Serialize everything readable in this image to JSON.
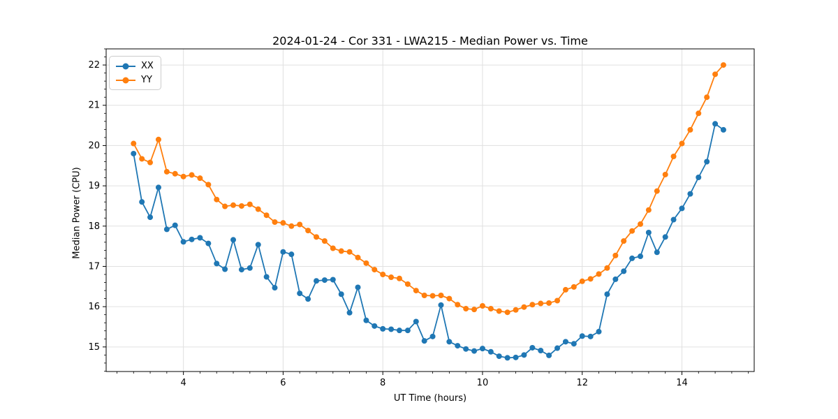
{
  "chart_data": {
    "type": "line",
    "title": "2024-01-24 - Cor 331 - LWA215 - Median Power vs. Time",
    "xlabel": "UT Time (hours)",
    "ylabel": "Median Power (CPU)",
    "xlim": [
      2.45,
      15.45
    ],
    "ylim": [
      14.39,
      22.4
    ],
    "x_ticks": [
      4,
      6,
      8,
      10,
      12,
      14
    ],
    "y_ticks": [
      15,
      16,
      17,
      18,
      19,
      20,
      21,
      22
    ],
    "x_minor_step": 0.3333,
    "y_minor_step": 0.2,
    "grid": true,
    "legend_position": "upper left",
    "marker": "circle",
    "x": [
      3,
      3.167,
      3.333,
      3.5,
      3.667,
      3.833,
      4,
      4.167,
      4.333,
      4.5,
      4.667,
      4.833,
      5,
      5.167,
      5.333,
      5.5,
      5.667,
      5.833,
      6,
      6.167,
      6.333,
      6.5,
      6.667,
      6.833,
      7,
      7.167,
      7.333,
      7.5,
      7.667,
      7.833,
      8,
      8.167,
      8.333,
      8.5,
      8.667,
      8.833,
      9,
      9.167,
      9.333,
      9.5,
      9.667,
      9.833,
      10,
      10.167,
      10.333,
      10.5,
      10.667,
      10.833,
      11,
      11.167,
      11.333,
      11.5,
      11.667,
      11.833,
      12,
      12.167,
      12.333,
      12.5,
      12.667,
      12.833,
      13,
      13.167,
      13.333,
      13.5,
      13.667,
      13.833,
      14,
      14.167,
      14.333,
      14.5,
      14.667,
      14.833
    ],
    "series": [
      {
        "name": "XX",
        "color": "#1f77b4",
        "values": [
          19.8,
          18.6,
          18.22,
          18.96,
          17.92,
          18.02,
          17.61,
          17.67,
          17.71,
          17.57,
          17.07,
          16.93,
          17.66,
          16.92,
          16.96,
          17.54,
          16.74,
          16.47,
          17.36,
          17.3,
          16.33,
          16.19,
          16.64,
          16.66,
          16.67,
          16.31,
          15.85,
          16.48,
          15.66,
          15.52,
          15.45,
          15.44,
          15.41,
          15.41,
          15.63,
          15.15,
          15.26,
          16.04,
          15.13,
          15.03,
          14.95,
          14.9,
          14.96,
          14.88,
          14.77,
          14.73,
          14.74,
          14.8,
          14.98,
          14.91,
          14.79,
          14.97,
          15.13,
          15.08,
          15.27,
          15.26,
          15.38,
          16.31,
          16.68,
          16.88,
          17.2,
          17.25,
          17.84,
          17.35,
          17.73,
          18.16,
          18.44,
          18.8,
          19.21,
          19.6,
          20.54,
          20.39
        ]
      },
      {
        "name": "YY",
        "color": "#ff7f0e",
        "values": [
          20.05,
          19.67,
          19.58,
          20.15,
          19.35,
          19.3,
          19.23,
          19.27,
          19.19,
          19.03,
          18.66,
          18.49,
          18.52,
          18.5,
          18.54,
          18.42,
          18.27,
          18.1,
          18.08,
          18.0,
          18.04,
          17.89,
          17.73,
          17.63,
          17.45,
          17.38,
          17.36,
          17.22,
          17.08,
          16.92,
          16.8,
          16.73,
          16.7,
          16.56,
          16.4,
          16.28,
          16.27,
          16.28,
          16.2,
          16.05,
          15.95,
          15.93,
          16.02,
          15.95,
          15.89,
          15.86,
          15.92,
          15.99,
          16.05,
          16.08,
          16.09,
          16.15,
          16.42,
          16.49,
          16.63,
          16.69,
          16.81,
          16.96,
          17.27,
          17.63,
          17.88,
          18.05,
          18.4,
          18.87,
          19.28,
          19.73,
          20.05,
          20.39,
          20.8,
          21.2,
          21.77,
          22.0
        ]
      }
    ]
  }
}
